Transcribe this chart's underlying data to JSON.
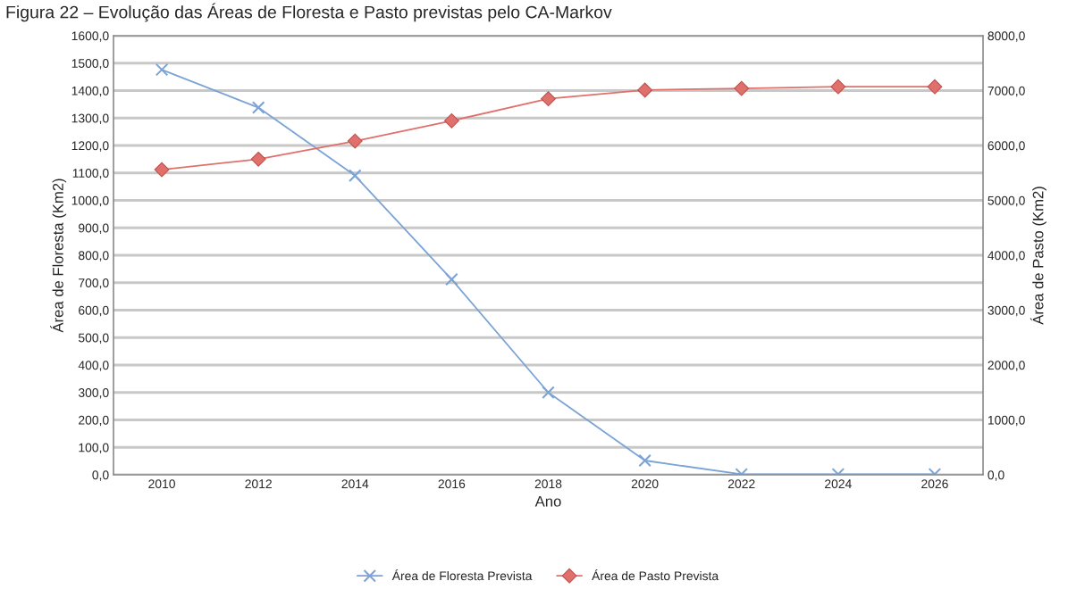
{
  "chart_data": {
    "type": "line",
    "title": "Figura 22 – Evolução das Áreas de Floresta e Pasto previstas pelo CA-Markov",
    "xlabel": "Ano",
    "ylabel": "Área de Floresta (Km2)",
    "y2label": "Área de Pasto (Km2)",
    "categories": [
      "2010",
      "2012",
      "2014",
      "2016",
      "2018",
      "2020",
      "2022",
      "2024",
      "2026"
    ],
    "series": [
      {
        "name": "Área de Floresta Prevista",
        "color": "#7ba3d6",
        "marker": "cross",
        "values": [
          1476,
          1338,
          1090,
          712,
          300,
          52,
          2,
          2,
          2
        ]
      },
      {
        "name": "Área de Pasto Prevista",
        "color": "#e0706b",
        "marker": "diamond",
        "axis": "y2",
        "values": [
          5560,
          5750,
          6080,
          6450,
          6850,
          7010,
          7040,
          7070,
          7070
        ]
      }
    ],
    "ylim": [
      0,
      1600
    ],
    "yticks": [
      {
        "value": 0,
        "label": "0,0"
      },
      {
        "value": 100,
        "label": "100,0"
      },
      {
        "value": 200,
        "label": "200,0"
      },
      {
        "value": 300,
        "label": "300,0"
      },
      {
        "value": 400,
        "label": "400,0"
      },
      {
        "value": 500,
        "label": "500,0"
      },
      {
        "value": 600,
        "label": "600,0"
      },
      {
        "value": 700,
        "label": "700,0"
      },
      {
        "value": 800,
        "label": "800,0"
      },
      {
        "value": 900,
        "label": "900,0"
      },
      {
        "value": 1000,
        "label": "1000,0"
      },
      {
        "value": 1100,
        "label": "1100,0"
      },
      {
        "value": 1200,
        "label": "1200,0"
      },
      {
        "value": 1300,
        "label": "1300,0"
      },
      {
        "value": 1400,
        "label": "1400,0"
      },
      {
        "value": 1500,
        "label": "1500,0"
      },
      {
        "value": 1600,
        "label": "1600,0"
      }
    ],
    "y2lim": [
      0,
      8000
    ],
    "y2ticks": [
      {
        "value": 0,
        "label": "0,0"
      },
      {
        "value": 1000,
        "label": "1000,0"
      },
      {
        "value": 2000,
        "label": "2000,0"
      },
      {
        "value": 3000,
        "label": "3000,0"
      },
      {
        "value": 4000,
        "label": "4000,0"
      },
      {
        "value": 5000,
        "label": "5000,0"
      },
      {
        "value": 6000,
        "label": "6000,0"
      },
      {
        "value": 7000,
        "label": "7000,0"
      },
      {
        "value": 8000,
        "label": "8000,0"
      }
    ],
    "grid": "y",
    "legend": "bottom",
    "line_style": "solid"
  }
}
